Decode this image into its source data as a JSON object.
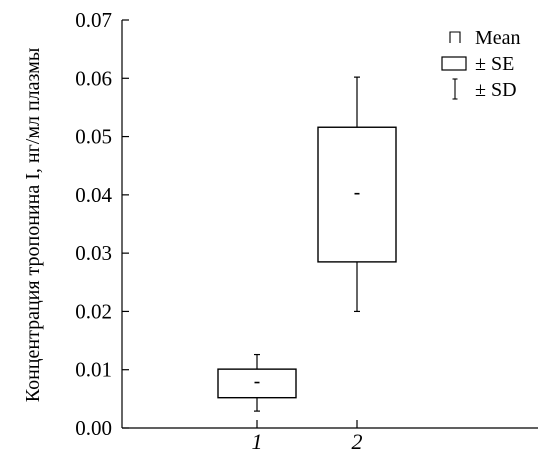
{
  "chart_data": {
    "type": "box",
    "ylabel": "Концентрация тропонина I, нг/мл плазмы",
    "xlabel": "",
    "categories": [
      "1",
      "2"
    ],
    "ylim": [
      0.0,
      0.07
    ],
    "yticks": [
      "0.00",
      "0.01",
      "0.02",
      "0.03",
      "0.04",
      "0.05",
      "0.06",
      "0.07"
    ],
    "groups": [
      {
        "label": "1",
        "mean": 0.0078,
        "se_low": 0.0052,
        "se_high": 0.0101,
        "sd_low": 0.0029,
        "sd_high": 0.0126
      },
      {
        "label": "2",
        "mean": 0.0402,
        "se_low": 0.0285,
        "se_high": 0.0516,
        "sd_low": 0.02,
        "sd_high": 0.0602
      }
    ],
    "legend": {
      "position": "top-right",
      "items": [
        {
          "symbol": "mean",
          "label": "Mean"
        },
        {
          "symbol": "box",
          "label": "± SE"
        },
        {
          "symbol": "whisker",
          "label": "± SD"
        }
      ]
    },
    "grid": false
  }
}
